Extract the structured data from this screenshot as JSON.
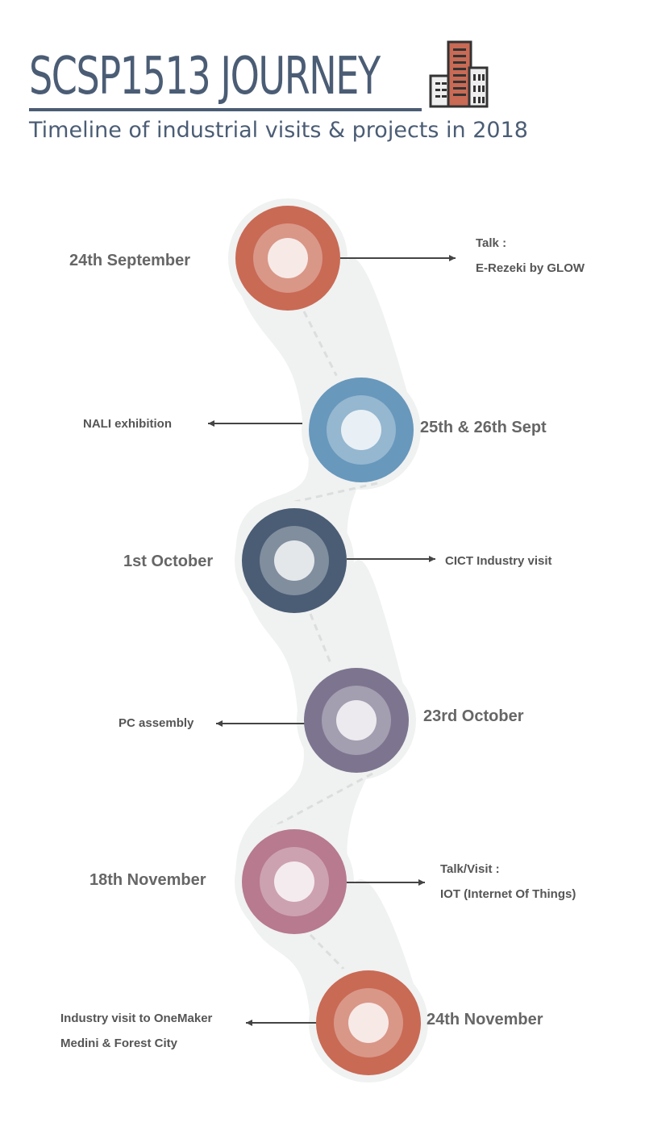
{
  "header": {
    "title": "SCSP1513 JOURNEY",
    "subtitle": "Timeline of industrial visits & projects in 2018",
    "icon": "buildings-icon"
  },
  "colors": {
    "text_primary": "#4b5d75",
    "path_background": "#f0f1f1"
  },
  "timeline": [
    {
      "date": "24th September",
      "event_lines": [
        "Talk :",
        "E-Rezeki by GLOW"
      ],
      "color": "#c96a55",
      "side": "right"
    },
    {
      "date": "25th & 26th Sept",
      "event_lines": [
        "NALI exhibition"
      ],
      "color": "#6898bc",
      "side": "left"
    },
    {
      "date": "1st October",
      "event_lines": [
        "CICT Industry visit"
      ],
      "color": "#4b5d75",
      "side": "right"
    },
    {
      "date": "23rd October",
      "event_lines": [
        "PC assembly"
      ],
      "color": "#7d758f",
      "side": "left"
    },
    {
      "date": "18th November",
      "event_lines": [
        "Talk/Visit :",
        "IOT (Internet Of Things)"
      ],
      "color": "#b77a8e",
      "side": "right"
    },
    {
      "date": "24th November",
      "event_lines": [
        "Industry visit to OneMaker",
        "Medini & Forest City"
      ],
      "color": "#c96a55",
      "side": "left"
    }
  ]
}
